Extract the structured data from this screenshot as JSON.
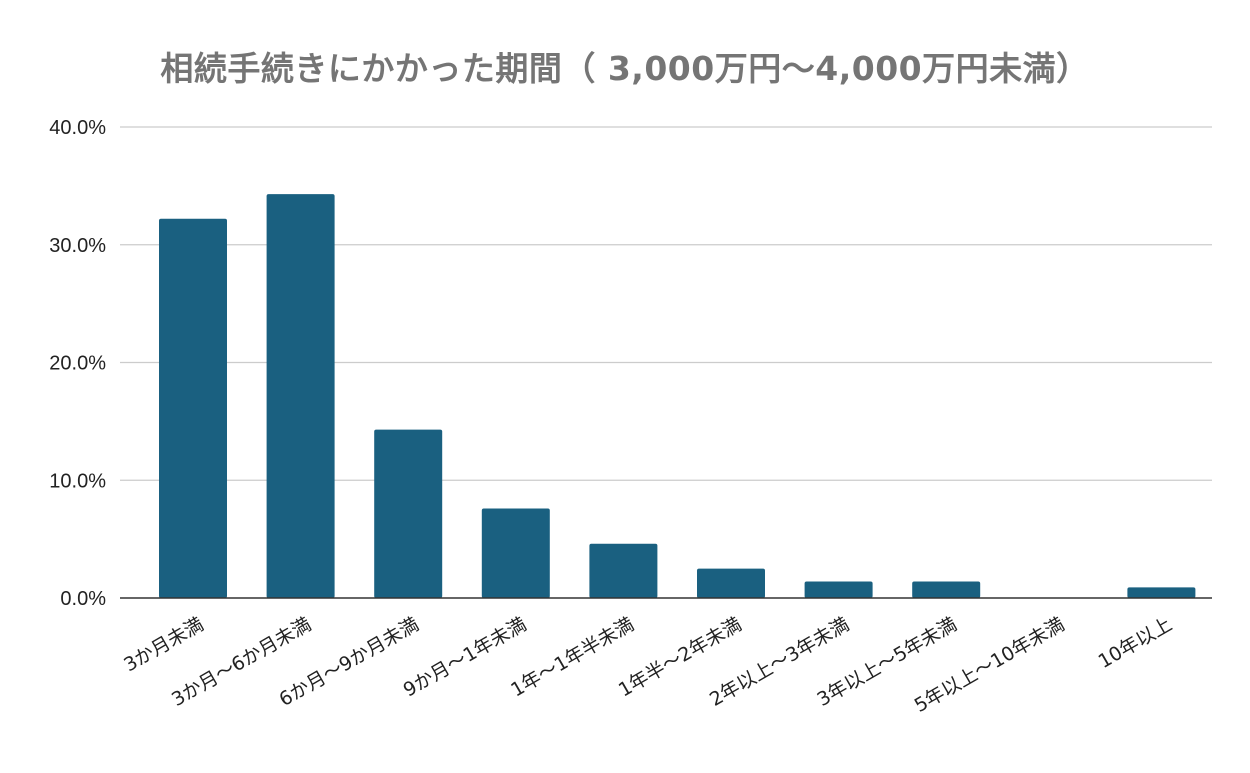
{
  "chart_data": {
    "type": "bar",
    "title": "相続手続きにかかった期間（ 3,000万円～4,000万円未満）",
    "xlabel": "",
    "ylabel": "",
    "ylim": [
      0,
      40
    ],
    "y_ticks": [
      "0.0%",
      "10.0%",
      "20.0%",
      "30.0%",
      "40.0%"
    ],
    "y_tick_values": [
      0,
      10,
      20,
      30,
      40
    ],
    "grid": true,
    "legend": "none",
    "bar_color": "#1a6080",
    "categories": [
      "3か月未満",
      "3か月～6か月未満",
      "6か月～9か月未満",
      "9か月～1年未満",
      "1年～1年半未満",
      "1年半～2年未満",
      "2年以上～3年未満",
      "3年以上～5年未満",
      "5年以上～10年未満",
      "10年以上"
    ],
    "values": [
      32.2,
      34.3,
      14.3,
      7.6,
      4.6,
      2.5,
      1.4,
      1.4,
      0.0,
      0.9
    ]
  }
}
